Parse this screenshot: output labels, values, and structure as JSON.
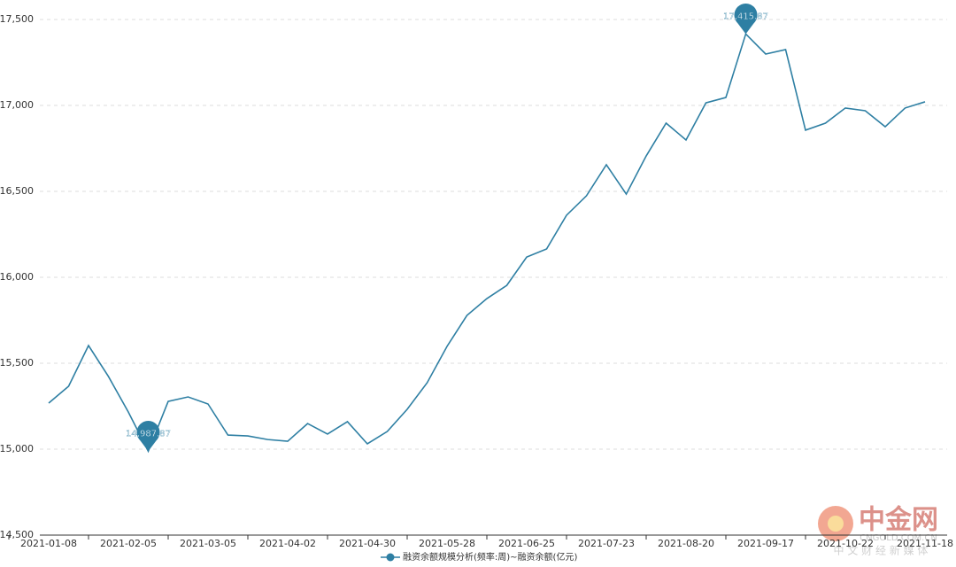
{
  "chart_data": {
    "type": "line",
    "categories": [
      "2021-01-08",
      null,
      null,
      null,
      "2021-02-05",
      null,
      null,
      null,
      "2021-03-05",
      null,
      null,
      null,
      "2021-04-02",
      null,
      null,
      null,
      "2021-04-30",
      null,
      null,
      null,
      "2021-05-28",
      null,
      null,
      null,
      "2021-06-25",
      null,
      null,
      null,
      "2021-07-23",
      null,
      null,
      null,
      "2021-08-20",
      null,
      null,
      null,
      "2021-09-17",
      null,
      null,
      null,
      "2021-10-22",
      null,
      null,
      null,
      "2021-11-18"
    ],
    "series": [
      {
        "name": "融资余额规模分析(频率:周)~融资余额(亿元)",
        "color": "#2e7fa3",
        "values": [
          15268,
          15366,
          15603,
          15423,
          15216,
          14987.87,
          15278,
          15304,
          15263,
          15082,
          15077,
          15056,
          15046,
          15149,
          15088,
          15160,
          15031,
          15103,
          15232,
          15386,
          15598,
          15778,
          15876,
          15953,
          16118,
          16165,
          16361,
          16474,
          16655,
          16484,
          16706,
          16897,
          16799,
          17015,
          17046,
          17415.87,
          17299,
          17325,
          16856,
          16897,
          16985,
          16969,
          16876,
          16985,
          17021
        ],
        "value_labels": [
          null,
          null,
          null,
          null,
          null,
          "14,987.87",
          null,
          null,
          null,
          null,
          null,
          null,
          null,
          null,
          null,
          null,
          null,
          null,
          null,
          null,
          null,
          null,
          null,
          null,
          null,
          null,
          null,
          null,
          null,
          null,
          null,
          null,
          null,
          null,
          null,
          "17,415.87",
          null,
          null,
          null,
          null,
          null,
          null,
          null,
          null,
          null
        ]
      }
    ],
    "ylim": [
      14500,
      17500
    ],
    "yticks": [
      {
        "value": 14500,
        "label": "14,500"
      },
      {
        "value": 15000,
        "label": "15,000"
      },
      {
        "value": 15500,
        "label": "15,500"
      },
      {
        "value": 16000,
        "label": "16,000"
      },
      {
        "value": 16500,
        "label": "16,500"
      },
      {
        "value": 17000,
        "label": "17,000"
      },
      {
        "value": 17500,
        "label": "17,500"
      }
    ],
    "grid": true,
    "legend": "bottom",
    "watermark": {
      "brand": "中金网",
      "site": "CNGOLD.COM.CN",
      "slogan": "中 文 财 经 新 媒 体"
    }
  }
}
